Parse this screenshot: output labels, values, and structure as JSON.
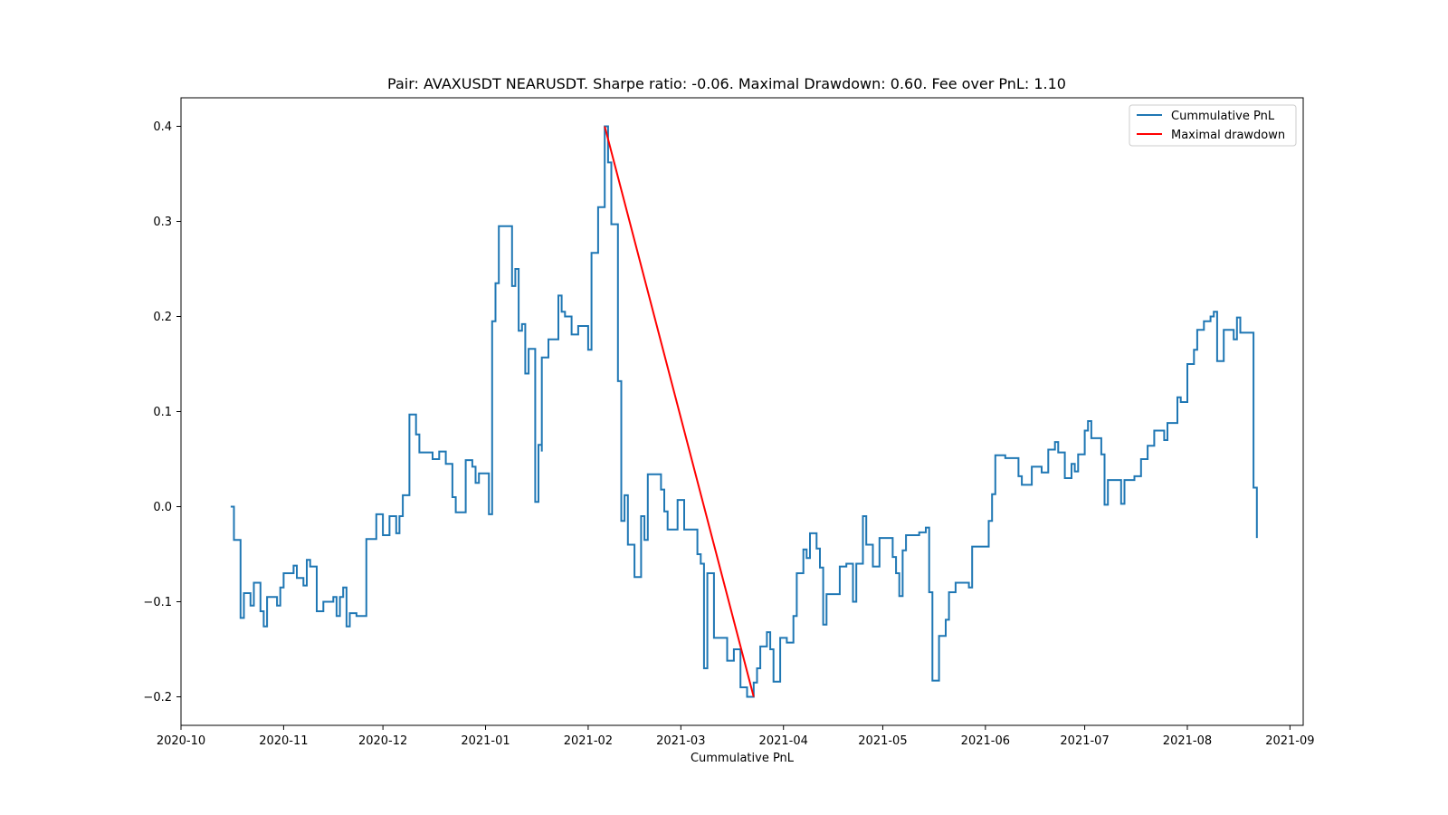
{
  "chart_data": {
    "type": "line",
    "title": "Pair: AVAXUSDT NEARUSDT. Sharpe ratio: -0.06. Maximal Drawdown: 0.60. Fee over PnL: 1.10",
    "xlabel": "Cummulative PnL",
    "ylabel": "",
    "x_type": "date",
    "xlim": [
      "2020-10-01",
      "2021-09-05"
    ],
    "ylim": [
      -0.23,
      0.43
    ],
    "x_ticks": [
      "2020-10-01",
      "2020-11-01",
      "2020-12-01",
      "2021-01-01",
      "2021-02-01",
      "2021-03-01",
      "2021-04-01",
      "2021-05-01",
      "2021-06-01",
      "2021-07-01",
      "2021-08-01",
      "2021-09-01"
    ],
    "x_tick_labels": [
      "2020-10",
      "2020-11",
      "2020-12",
      "2021-01",
      "2021-02",
      "2021-03",
      "2021-04",
      "2021-05",
      "2021-06",
      "2021-07",
      "2021-08",
      "2021-09"
    ],
    "y_ticks": [
      -0.2,
      -0.1,
      0.0,
      0.1,
      0.2,
      0.3,
      0.4
    ],
    "y_tick_labels": [
      "−0.2",
      "−0.1",
      "0.0",
      "0.1",
      "0.2",
      "0.3",
      "0.4"
    ],
    "grid": false,
    "legend_position": "top-right",
    "series": [
      {
        "name": "Cummulative PnL",
        "color": "#1f77b4",
        "step": true,
        "points": [
          [
            "2020-10-16",
            0.0
          ],
          [
            "2020-10-17",
            -0.035
          ],
          [
            "2020-10-19",
            -0.117
          ],
          [
            "2020-10-20",
            -0.091
          ],
          [
            "2020-10-22",
            -0.104
          ],
          [
            "2020-10-23",
            -0.08
          ],
          [
            "2020-10-25",
            -0.11
          ],
          [
            "2020-10-26",
            -0.126
          ],
          [
            "2020-10-27",
            -0.095
          ],
          [
            "2020-10-30",
            -0.104
          ],
          [
            "2020-10-31",
            -0.085
          ],
          [
            "2020-11-01",
            -0.07
          ],
          [
            "2020-11-04",
            -0.062
          ],
          [
            "2020-11-05",
            -0.075
          ],
          [
            "2020-11-07",
            -0.083
          ],
          [
            "2020-11-08",
            -0.056
          ],
          [
            "2020-11-09",
            -0.063
          ],
          [
            "2020-11-11",
            -0.11
          ],
          [
            "2020-11-13",
            -0.1
          ],
          [
            "2020-11-16",
            -0.095
          ],
          [
            "2020-11-17",
            -0.115
          ],
          [
            "2020-11-18",
            -0.095
          ],
          [
            "2020-11-19",
            -0.085
          ],
          [
            "2020-11-20",
            -0.126
          ],
          [
            "2020-11-21",
            -0.112
          ],
          [
            "2020-11-23",
            -0.115
          ],
          [
            "2020-11-26",
            -0.034
          ],
          [
            "2020-11-29",
            -0.008
          ],
          [
            "2020-12-01",
            -0.03
          ],
          [
            "2020-12-03",
            -0.01
          ],
          [
            "2020-12-05",
            -0.028
          ],
          [
            "2020-12-06",
            -0.01
          ],
          [
            "2020-12-07",
            0.012
          ],
          [
            "2020-12-09",
            0.097
          ],
          [
            "2020-12-11",
            0.076
          ],
          [
            "2020-12-12",
            0.057
          ],
          [
            "2020-12-16",
            0.05
          ],
          [
            "2020-12-18",
            0.058
          ],
          [
            "2020-12-20",
            0.045
          ],
          [
            "2020-12-22",
            0.01
          ],
          [
            "2020-12-23",
            -0.006
          ],
          [
            "2020-12-26",
            0.049
          ],
          [
            "2020-12-28",
            0.042
          ],
          [
            "2020-12-29",
            0.025
          ],
          [
            "2020-12-30",
            0.035
          ],
          [
            "2021-01-02",
            -0.008
          ],
          [
            "2021-01-03",
            0.195
          ],
          [
            "2021-01-04",
            0.235
          ],
          [
            "2021-01-05",
            0.295
          ],
          [
            "2021-01-09",
            0.232
          ],
          [
            "2021-01-10",
            0.25
          ],
          [
            "2021-01-11",
            0.185
          ],
          [
            "2021-01-12",
            0.192
          ],
          [
            "2021-01-13",
            0.14
          ],
          [
            "2021-01-14",
            0.166
          ],
          [
            "2021-01-16",
            0.005
          ],
          [
            "2021-01-17",
            0.065
          ],
          [
            "2021-01-18",
            0.058
          ],
          [
            "2021-01-18",
            0.157
          ],
          [
            "2021-01-20",
            0.176
          ],
          [
            "2021-01-23",
            0.222
          ],
          [
            "2021-01-24",
            0.205
          ],
          [
            "2021-01-25",
            0.2
          ],
          [
            "2021-01-27",
            0.181
          ],
          [
            "2021-01-29",
            0.19
          ],
          [
            "2021-02-01",
            0.165
          ],
          [
            "2021-02-02",
            0.267
          ],
          [
            "2021-02-04",
            0.315
          ],
          [
            "2021-02-06",
            0.4
          ],
          [
            "2021-02-07",
            0.362
          ],
          [
            "2021-02-08",
            0.297
          ],
          [
            "2021-02-10",
            0.132
          ],
          [
            "2021-02-11",
            -0.015
          ],
          [
            "2021-02-12",
            0.012
          ],
          [
            "2021-02-13",
            -0.04
          ],
          [
            "2021-02-15",
            -0.074
          ],
          [
            "2021-02-17",
            -0.01
          ],
          [
            "2021-02-18",
            -0.035
          ],
          [
            "2021-02-19",
            0.034
          ],
          [
            "2021-02-23",
            0.018
          ],
          [
            "2021-02-24",
            -0.005
          ],
          [
            "2021-02-25",
            -0.024
          ],
          [
            "2021-02-28",
            0.007
          ],
          [
            "2021-03-02",
            -0.024
          ],
          [
            "2021-03-06",
            -0.05
          ],
          [
            "2021-03-07",
            -0.06
          ],
          [
            "2021-03-08",
            -0.17
          ],
          [
            "2021-03-09",
            -0.07
          ],
          [
            "2021-03-11",
            -0.138
          ],
          [
            "2021-03-15",
            -0.162
          ],
          [
            "2021-03-17",
            -0.15
          ],
          [
            "2021-03-19",
            -0.19
          ],
          [
            "2021-03-21",
            -0.2
          ],
          [
            "2021-03-23",
            -0.185
          ],
          [
            "2021-03-24",
            -0.17
          ],
          [
            "2021-03-25",
            -0.147
          ],
          [
            "2021-03-27",
            -0.132
          ],
          [
            "2021-03-28",
            -0.15
          ],
          [
            "2021-03-29",
            -0.184
          ],
          [
            "2021-03-31",
            -0.138
          ],
          [
            "2021-04-02",
            -0.143
          ],
          [
            "2021-04-04",
            -0.115
          ],
          [
            "2021-04-05",
            -0.07
          ],
          [
            "2021-04-07",
            -0.045
          ],
          [
            "2021-04-08",
            -0.054
          ],
          [
            "2021-04-09",
            -0.028
          ],
          [
            "2021-04-11",
            -0.044
          ],
          [
            "2021-04-12",
            -0.064
          ],
          [
            "2021-04-13",
            -0.124
          ],
          [
            "2021-04-14",
            -0.092
          ],
          [
            "2021-04-18",
            -0.063
          ],
          [
            "2021-04-20",
            -0.06
          ],
          [
            "2021-04-22",
            -0.1
          ],
          [
            "2021-04-23",
            -0.06
          ],
          [
            "2021-04-25",
            -0.01
          ],
          [
            "2021-04-26",
            -0.04
          ],
          [
            "2021-04-28",
            -0.063
          ],
          [
            "2021-04-30",
            -0.033
          ],
          [
            "2021-05-04",
            -0.053
          ],
          [
            "2021-05-05",
            -0.07
          ],
          [
            "2021-05-06",
            -0.094
          ],
          [
            "2021-05-07",
            -0.046
          ],
          [
            "2021-05-08",
            -0.03
          ],
          [
            "2021-05-12",
            -0.027
          ],
          [
            "2021-05-14",
            -0.022
          ],
          [
            "2021-05-15",
            -0.09
          ],
          [
            "2021-05-16",
            -0.183
          ],
          [
            "2021-05-18",
            -0.136
          ],
          [
            "2021-05-20",
            -0.119
          ],
          [
            "2021-05-21",
            -0.09
          ],
          [
            "2021-05-23",
            -0.08
          ],
          [
            "2021-05-27",
            -0.085
          ],
          [
            "2021-05-28",
            -0.042
          ],
          [
            "2021-06-02",
            -0.015
          ],
          [
            "2021-06-03",
            0.013
          ],
          [
            "2021-06-04",
            0.054
          ],
          [
            "2021-06-07",
            0.051
          ],
          [
            "2021-06-11",
            0.032
          ],
          [
            "2021-06-12",
            0.023
          ],
          [
            "2021-06-15",
            0.042
          ],
          [
            "2021-06-18",
            0.036
          ],
          [
            "2021-06-20",
            0.06
          ],
          [
            "2021-06-22",
            0.068
          ],
          [
            "2021-06-23",
            0.057
          ],
          [
            "2021-06-25",
            0.03
          ],
          [
            "2021-06-27",
            0.045
          ],
          [
            "2021-06-28",
            0.037
          ],
          [
            "2021-06-29",
            0.055
          ],
          [
            "2021-07-01",
            0.08
          ],
          [
            "2021-07-02",
            0.09
          ],
          [
            "2021-07-03",
            0.072
          ],
          [
            "2021-07-06",
            0.055
          ],
          [
            "2021-07-07",
            0.002
          ],
          [
            "2021-07-08",
            0.028
          ],
          [
            "2021-07-12",
            0.003
          ],
          [
            "2021-07-13",
            0.028
          ],
          [
            "2021-07-16",
            0.032
          ],
          [
            "2021-07-18",
            0.05
          ],
          [
            "2021-07-20",
            0.064
          ],
          [
            "2021-07-22",
            0.08
          ],
          [
            "2021-07-25",
            0.07
          ],
          [
            "2021-07-26",
            0.088
          ],
          [
            "2021-07-29",
            0.115
          ],
          [
            "2021-07-30",
            0.11
          ],
          [
            "2021-08-01",
            0.15
          ],
          [
            "2021-08-03",
            0.165
          ],
          [
            "2021-08-04",
            0.186
          ],
          [
            "2021-08-06",
            0.195
          ],
          [
            "2021-08-08",
            0.2
          ],
          [
            "2021-08-09",
            0.205
          ],
          [
            "2021-08-10",
            0.153
          ],
          [
            "2021-08-12",
            0.186
          ],
          [
            "2021-08-15",
            0.176
          ],
          [
            "2021-08-16",
            0.199
          ],
          [
            "2021-08-17",
            0.183
          ],
          [
            "2021-08-21",
            0.02
          ],
          [
            "2021-08-22",
            -0.033
          ]
        ]
      },
      {
        "name": "Maximal drawdown",
        "color": "#ff0000",
        "step": false,
        "points": [
          [
            "2021-02-06",
            0.4
          ],
          [
            "2021-03-23",
            -0.2
          ]
        ]
      }
    ]
  }
}
